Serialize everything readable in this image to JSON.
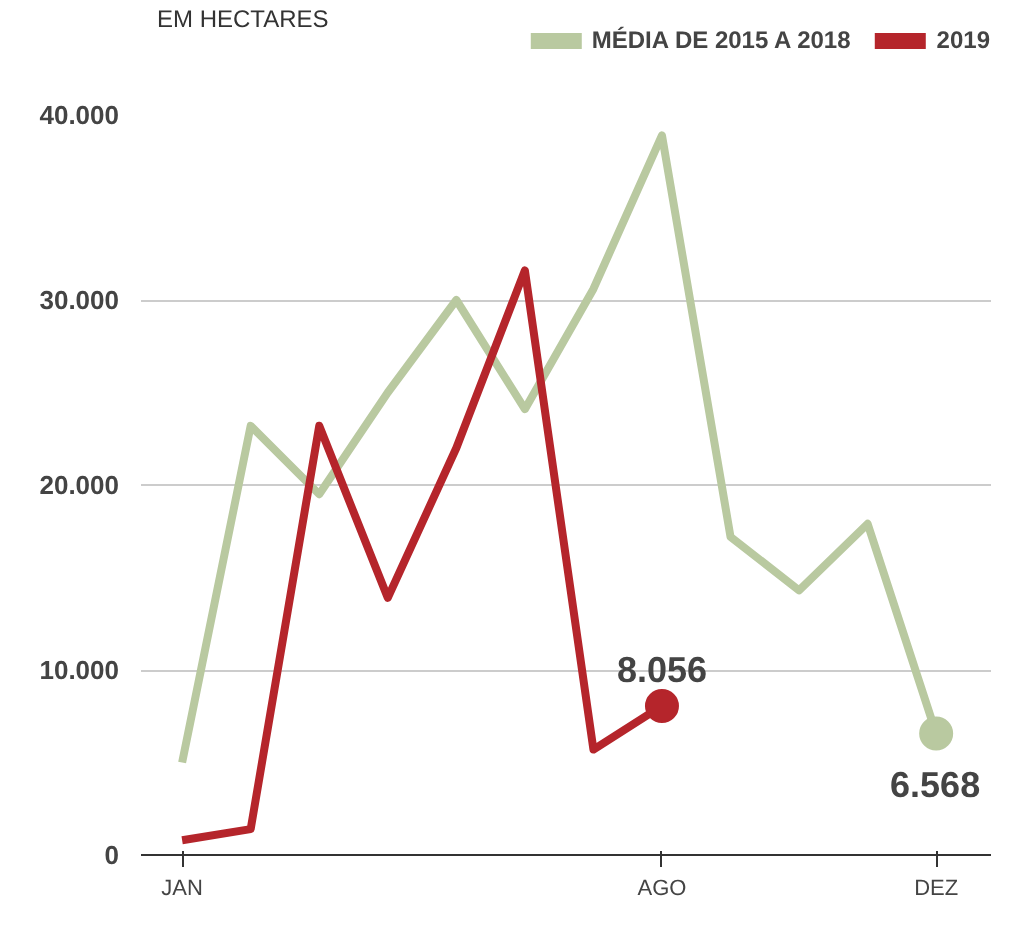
{
  "chart_data": {
    "type": "line",
    "ylabel": "EM HECTARES",
    "categories": [
      "JAN",
      null,
      null,
      null,
      null,
      null,
      null,
      "AGO",
      null,
      null,
      null,
      "DEZ"
    ],
    "series": [
      {
        "name": "MÉDIA DE 2015 A 2018",
        "color": "#b9c9a0",
        "values": [
          5000,
          23200,
          19500,
          25000,
          30000,
          24100,
          30600,
          38900,
          17200,
          14300,
          17900,
          6568
        ],
        "value_labels": [
          null,
          null,
          null,
          null,
          null,
          null,
          null,
          null,
          null,
          null,
          null,
          "6.568"
        ]
      },
      {
        "name": "2019",
        "color": "#b5252b",
        "values": [
          800,
          1400,
          23200,
          13900,
          22000,
          31600,
          5700,
          8056,
          null,
          null,
          null,
          null
        ],
        "value_labels": [
          null,
          null,
          null,
          null,
          null,
          null,
          null,
          "8.056",
          null,
          null,
          null,
          null
        ]
      }
    ],
    "ylim": [
      0,
      40000
    ],
    "yticks": [
      {
        "value": 0,
        "label": "0"
      },
      {
        "value": 10000,
        "label": "10.000"
      },
      {
        "value": 20000,
        "label": "20.000"
      },
      {
        "value": 30000,
        "label": "30.000"
      },
      {
        "value": 40000,
        "label": "40.000"
      }
    ],
    "grid": "y",
    "legend": "top",
    "marker": "none",
    "line_style": "solid"
  }
}
